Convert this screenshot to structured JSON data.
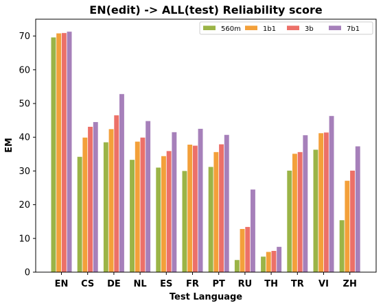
{
  "chart_data": {
    "type": "bar",
    "title": "EN(edit) -> ALL(test) Reliability score",
    "xlabel": "Test Language",
    "ylabel": "EM",
    "ylim": [
      0,
      75
    ],
    "yticks": [
      0,
      10,
      20,
      30,
      40,
      50,
      60,
      70
    ],
    "grid": false,
    "legend_position": "top-right",
    "categories": [
      "EN",
      "CS",
      "DE",
      "NL",
      "ES",
      "FR",
      "PT",
      "RU",
      "TH",
      "TR",
      "VI",
      "ZH"
    ],
    "series": [
      {
        "name": "560m",
        "color": "#9bb447",
        "values": [
          69.6,
          34.2,
          38.5,
          33.3,
          31.0,
          30.0,
          31.2,
          3.6,
          4.6,
          30.1,
          36.3,
          15.4
        ]
      },
      {
        "name": "1b1",
        "color": "#f3a03a",
        "values": [
          70.8,
          39.9,
          42.4,
          38.7,
          34.4,
          37.8,
          35.6,
          12.8,
          6.0,
          35.1,
          41.2,
          27.1
        ]
      },
      {
        "name": "3b",
        "color": "#ec7068",
        "values": [
          70.9,
          43.1,
          46.5,
          39.9,
          35.9,
          37.5,
          37.9,
          13.4,
          6.3,
          35.6,
          41.4,
          30.1
        ]
      },
      {
        "name": "7b1",
        "color": "#a680ba",
        "values": [
          71.3,
          44.5,
          52.8,
          44.8,
          41.5,
          42.5,
          40.7,
          24.5,
          7.5,
          40.6,
          46.3,
          37.3
        ]
      }
    ]
  }
}
